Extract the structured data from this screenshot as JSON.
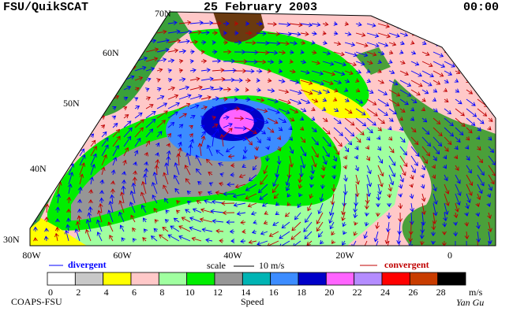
{
  "header": {
    "title": "FSU/QuikSCAT",
    "date": "25 February 2003",
    "time": "00:00"
  },
  "map": {
    "lat_labels": [
      "70N",
      "60N",
      "50N",
      "40N",
      "30N"
    ],
    "lon_labels": [
      "80W",
      "60W",
      "40W",
      "20W",
      "0"
    ]
  },
  "legend": {
    "divergent": {
      "label": "divergent",
      "color": "#0000ff"
    },
    "scale": {
      "label": "scale",
      "value_label": "10 m/s"
    },
    "convergent": {
      "label": "convergent",
      "color": "#c00000"
    }
  },
  "colorbar": {
    "title": "Speed",
    "unit": "m/s",
    "ticks": [
      0,
      2,
      4,
      6,
      8,
      10,
      12,
      14,
      16,
      18,
      20,
      22,
      24,
      26,
      28
    ],
    "colors": [
      "#ffffff",
      "#c8c8c8",
      "#ffff00",
      "#ffc8c8",
      "#a0ffa0",
      "#00ee00",
      "#969696",
      "#00b4b4",
      "#3c8cff",
      "#0000c8",
      "#ff64ff",
      "#b48cff",
      "#ff0000",
      "#c83c00",
      "#000000"
    ]
  },
  "footer": {
    "left": "COAPS-FSU",
    "signature": "Yan Gu"
  }
}
